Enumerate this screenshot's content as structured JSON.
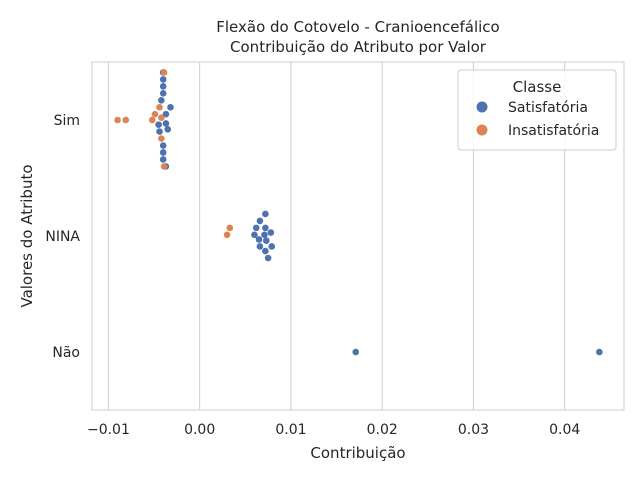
{
  "chart_data": {
    "type": "scatter",
    "title_lines": [
      "Flexão do Cotovelo - Cranioencefálico",
      "Contribuição do Atributo por Valor"
    ],
    "xlabel": "Contribuição",
    "ylabel": "Valores do Atributo",
    "xlim": [
      -0.0118,
      0.0465
    ],
    "x_ticks": [
      -0.01,
      0.0,
      0.01,
      0.02,
      0.03,
      0.04
    ],
    "x_tick_labels": [
      "−0.01",
      "0.00",
      "0.01",
      "0.02",
      "0.03",
      "0.04"
    ],
    "categories": [
      "Sim",
      "NINA",
      "Não"
    ],
    "grid": "vertical",
    "legend": {
      "title": "Classe",
      "placement": "top-right",
      "entries": [
        "Satisfatória",
        "Insatisfatória"
      ]
    },
    "colors": {
      "Satisfatória": "#4c72b0",
      "Insatisfatória": "#dd8452"
    },
    "series": [
      {
        "name": "Satisfatória",
        "points": [
          {
            "x": -0.004,
            "y": "Sim",
            "offset": -0.41
          },
          {
            "x": -0.004,
            "y": "Sim",
            "offset": -0.35
          },
          {
            "x": -0.004,
            "y": "Sim",
            "offset": -0.29
          },
          {
            "x": -0.004,
            "y": "Sim",
            "offset": -0.23
          },
          {
            "x": -0.0042,
            "y": "Sim",
            "offset": -0.17
          },
          {
            "x": -0.0032,
            "y": "Sim",
            "offset": -0.11
          },
          {
            "x": -0.0037,
            "y": "Sim",
            "offset": -0.05
          },
          {
            "x": -0.0037,
            "y": "Sim",
            "offset": 0.03
          },
          {
            "x": -0.0045,
            "y": "Sim",
            "offset": 0.04
          },
          {
            "x": -0.0035,
            "y": "Sim",
            "offset": 0.08
          },
          {
            "x": -0.0044,
            "y": "Sim",
            "offset": 0.1
          },
          {
            "x": -0.004,
            "y": "Sim",
            "offset": 0.22
          },
          {
            "x": -0.004,
            "y": "Sim",
            "offset": 0.28
          },
          {
            "x": -0.004,
            "y": "Sim",
            "offset": 0.34
          },
          {
            "x": -0.0037,
            "y": "Sim",
            "offset": 0.4
          },
          {
            "x": 0.0072,
            "y": "NINA",
            "offset": -0.19
          },
          {
            "x": 0.0066,
            "y": "NINA",
            "offset": -0.13
          },
          {
            "x": 0.0062,
            "y": "NINA",
            "offset": -0.07
          },
          {
            "x": 0.0072,
            "y": "NINA",
            "offset": -0.07
          },
          {
            "x": 0.0078,
            "y": "NINA",
            "offset": -0.03
          },
          {
            "x": 0.006,
            "y": "NINA",
            "offset": -0.01
          },
          {
            "x": 0.0071,
            "y": "NINA",
            "offset": -0.01
          },
          {
            "x": 0.0065,
            "y": "NINA",
            "offset": 0.03
          },
          {
            "x": 0.0073,
            "y": "NINA",
            "offset": 0.04
          },
          {
            "x": 0.0066,
            "y": "NINA",
            "offset": 0.09
          },
          {
            "x": 0.0079,
            "y": "NINA",
            "offset": 0.09
          },
          {
            "x": 0.0072,
            "y": "NINA",
            "offset": 0.13
          },
          {
            "x": 0.0075,
            "y": "NINA",
            "offset": 0.19
          },
          {
            "x": 0.0171,
            "y": "Não",
            "offset": 0.0
          },
          {
            "x": 0.0438,
            "y": "Não",
            "offset": 0.0
          }
        ]
      },
      {
        "name": "Insatisfatória",
        "points": [
          {
            "x": -0.0039,
            "y": "Sim",
            "offset": -0.41
          },
          {
            "x": -0.009,
            "y": "Sim",
            "offset": 0.0
          },
          {
            "x": -0.0081,
            "y": "Sim",
            "offset": 0.0
          },
          {
            "x": -0.0052,
            "y": "Sim",
            "offset": 0.0
          },
          {
            "x": -0.0049,
            "y": "Sim",
            "offset": -0.05
          },
          {
            "x": -0.0044,
            "y": "Sim",
            "offset": -0.11
          },
          {
            "x": -0.0042,
            "y": "Sim",
            "offset": -0.02
          },
          {
            "x": -0.0042,
            "y": "Sim",
            "offset": 0.16
          },
          {
            "x": -0.0039,
            "y": "Sim",
            "offset": 0.4
          },
          {
            "x": 0.0033,
            "y": "NINA",
            "offset": -0.07
          },
          {
            "x": 0.003,
            "y": "NINA",
            "offset": -0.01
          }
        ]
      }
    ]
  }
}
